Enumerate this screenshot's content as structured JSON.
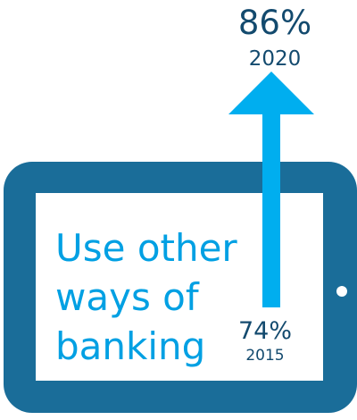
{
  "colors": {
    "frame": "#1a6d99",
    "screen": "#ffffff",
    "arrow": "#00aeef",
    "accent_text": "#00a0e3",
    "value_text": "#134a6e"
  },
  "headline": {
    "line1": "Use other",
    "line2": "ways of",
    "line3": "banking"
  },
  "chart_data": {
    "type": "bar",
    "categories": [
      "2015",
      "2020"
    ],
    "values": [
      74,
      86
    ],
    "value_labels": [
      "74%",
      "86%"
    ],
    "unit": "%"
  }
}
